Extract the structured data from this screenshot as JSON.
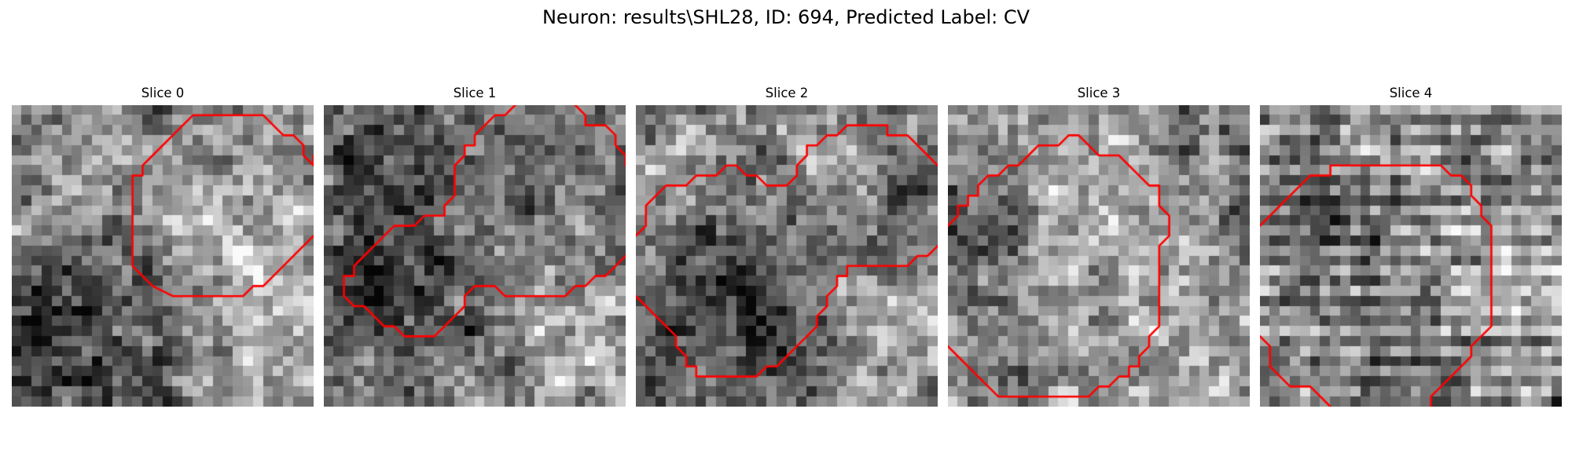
{
  "figure": {
    "title": "Neuron: results\\SHL28, ID: 694, Predicted Label: CV",
    "colormap": "gray",
    "contour_color": "#ff0000",
    "grid_resolution": 30
  },
  "panels": [
    {
      "title": "Slice 0",
      "seed": 101,
      "blobs": [
        {
          "cx": 20,
          "cy": 12,
          "r": 8,
          "v": 0.22
        },
        {
          "cx": 5,
          "cy": 21,
          "r": 7,
          "v": -0.26
        },
        {
          "cx": 13,
          "cy": 23,
          "r": 6,
          "v": -0.12
        },
        {
          "cx": 26,
          "cy": 24,
          "r": 6,
          "v": 0.18
        },
        {
          "cx": 3,
          "cy": 11,
          "r": 4,
          "v": 0.16
        }
      ],
      "contours": [
        [
          [
            19,
            1
          ],
          [
            25,
            1
          ],
          [
            27,
            3
          ],
          [
            28,
            3
          ],
          [
            29,
            4
          ],
          [
            29,
            5
          ],
          [
            30,
            6
          ],
          [
            30,
            5
          ]
        ],
        [
          [
            19,
            1
          ],
          [
            18,
            1
          ],
          [
            16,
            3
          ],
          [
            14,
            5
          ],
          [
            13,
            6
          ],
          [
            13,
            7
          ],
          [
            12,
            7
          ],
          [
            12,
            16
          ],
          [
            14,
            18
          ],
          [
            16,
            19
          ],
          [
            23,
            19
          ],
          [
            24,
            18
          ],
          [
            25,
            18
          ],
          [
            29,
            14
          ],
          [
            30,
            13
          ]
        ]
      ]
    },
    {
      "title": "Slice 1",
      "seed": 202,
      "blobs": [
        {
          "cx": 9,
          "cy": 17,
          "r": 8,
          "v": -0.3
        },
        {
          "cx": 17,
          "cy": 11,
          "r": 6,
          "v": 0.12
        },
        {
          "cx": 22,
          "cy": 23,
          "r": 6,
          "v": 0.16
        },
        {
          "cx": 4,
          "cy": 6,
          "r": 5,
          "v": -0.1
        },
        {
          "cx": 26,
          "cy": 7,
          "r": 4,
          "v": -0.12
        }
      ],
      "contours": [
        [
          [
            19,
            0
          ],
          [
            18,
            1
          ],
          [
            17,
            1
          ],
          [
            15,
            3
          ],
          [
            15,
            4
          ],
          [
            14,
            4
          ],
          [
            14,
            5
          ],
          [
            13,
            6
          ],
          [
            13,
            8
          ],
          [
            13,
            9
          ],
          [
            12,
            10
          ],
          [
            12,
            11
          ],
          [
            10,
            11
          ],
          [
            9,
            12
          ],
          [
            7,
            12
          ],
          [
            6,
            13
          ],
          [
            5,
            14
          ],
          [
            4,
            15
          ],
          [
            3,
            16
          ],
          [
            3,
            17
          ],
          [
            2,
            17
          ],
          [
            2,
            19
          ],
          [
            3,
            20
          ],
          [
            4,
            20
          ],
          [
            5,
            21
          ],
          [
            6,
            22
          ],
          [
            7,
            22
          ],
          [
            8,
            23
          ],
          [
            9,
            23
          ],
          [
            11,
            23
          ],
          [
            12,
            22
          ],
          [
            13,
            21
          ],
          [
            14,
            20
          ],
          [
            14,
            19
          ],
          [
            15,
            18
          ],
          [
            16,
            18
          ],
          [
            17,
            18
          ],
          [
            18,
            19
          ],
          [
            19,
            19
          ],
          [
            24,
            19
          ],
          [
            25,
            18
          ],
          [
            26,
            18
          ],
          [
            27,
            17
          ],
          [
            28,
            17
          ],
          [
            29,
            16
          ],
          [
            30,
            15
          ]
        ],
        [
          [
            25,
            0
          ],
          [
            26,
            1
          ],
          [
            26,
            2
          ],
          [
            27,
            2
          ],
          [
            28,
            2
          ],
          [
            29,
            3
          ],
          [
            29,
            4
          ],
          [
            30,
            5
          ],
          [
            30,
            6
          ]
        ]
      ]
    },
    {
      "title": "Slice 2",
      "seed": 303,
      "blobs": [
        {
          "cx": 10,
          "cy": 20,
          "r": 7,
          "v": -0.32
        },
        {
          "cx": 14,
          "cy": 9,
          "r": 8,
          "v": 0.1
        },
        {
          "cx": 25,
          "cy": 22,
          "r": 6,
          "v": 0.18
        },
        {
          "cx": 24,
          "cy": 4,
          "r": 5,
          "v": -0.1
        },
        {
          "cx": 2,
          "cy": 4,
          "r": 4,
          "v": 0.14
        }
      ],
      "contours": [
        [
          [
            0,
            13
          ],
          [
            1,
            12
          ],
          [
            1,
            11
          ],
          [
            1,
            10
          ],
          [
            2,
            9
          ],
          [
            3,
            8
          ],
          [
            4,
            8
          ],
          [
            5,
            8
          ],
          [
            6,
            7
          ],
          [
            7,
            7
          ],
          [
            8,
            7
          ],
          [
            9,
            6
          ],
          [
            10,
            6
          ],
          [
            11,
            7
          ],
          [
            12,
            7
          ],
          [
            13,
            8
          ],
          [
            14,
            8
          ],
          [
            15,
            8
          ],
          [
            16,
            7
          ],
          [
            16,
            6
          ],
          [
            17,
            5
          ],
          [
            17,
            4
          ],
          [
            18,
            4
          ],
          [
            19,
            3
          ],
          [
            20,
            3
          ],
          [
            21,
            2
          ],
          [
            22,
            2
          ],
          [
            24,
            2
          ],
          [
            25,
            2
          ],
          [
            25,
            3
          ],
          [
            26,
            3
          ],
          [
            27,
            3
          ],
          [
            28,
            4
          ],
          [
            29,
            5
          ],
          [
            30,
            6
          ]
        ],
        [
          [
            0,
            19
          ],
          [
            1,
            20
          ],
          [
            2,
            21
          ],
          [
            3,
            22
          ],
          [
            4,
            23
          ],
          [
            4,
            24
          ],
          [
            5,
            25
          ],
          [
            5,
            26
          ],
          [
            6,
            26
          ],
          [
            6,
            27
          ],
          [
            7,
            27
          ],
          [
            8,
            27
          ],
          [
            12,
            27
          ],
          [
            13,
            26
          ],
          [
            14,
            26
          ],
          [
            15,
            25
          ],
          [
            16,
            24
          ],
          [
            17,
            23
          ],
          [
            18,
            22
          ],
          [
            18,
            21
          ],
          [
            19,
            20
          ],
          [
            19,
            19
          ],
          [
            20,
            18
          ],
          [
            20,
            17
          ],
          [
            21,
            17
          ],
          [
            21,
            16
          ],
          [
            22,
            16
          ],
          [
            27,
            16
          ],
          [
            28,
            15
          ],
          [
            29,
            15
          ],
          [
            30,
            14
          ]
        ]
      ]
    },
    {
      "title": "Slice 3",
      "seed": 404,
      "blobs": [
        {
          "cx": 14,
          "cy": 14,
          "r": 9,
          "v": 0.28
        },
        {
          "cx": 3,
          "cy": 12,
          "r": 4,
          "v": -0.34
        },
        {
          "cx": 10,
          "cy": 23,
          "r": 5,
          "v": -0.14
        },
        {
          "cx": 27,
          "cy": 10,
          "r": 5,
          "v": -0.16
        },
        {
          "cx": 26,
          "cy": 28,
          "r": 4,
          "v": 0.16
        }
      ],
      "contours": [
        [
          [
            0,
            12
          ],
          [
            1,
            11
          ],
          [
            1,
            10
          ],
          [
            2,
            10
          ],
          [
            2,
            9
          ],
          [
            3,
            9
          ],
          [
            3,
            8
          ],
          [
            4,
            7
          ],
          [
            5,
            7
          ],
          [
            6,
            6
          ],
          [
            7,
            6
          ],
          [
            8,
            5
          ],
          [
            9,
            4
          ],
          [
            10,
            4
          ],
          [
            11,
            4
          ],
          [
            12,
            3
          ],
          [
            13,
            3
          ],
          [
            14,
            4
          ],
          [
            15,
            5
          ],
          [
            16,
            5
          ],
          [
            17,
            5
          ],
          [
            18,
            6
          ],
          [
            19,
            7
          ],
          [
            20,
            8
          ],
          [
            21,
            8
          ],
          [
            21,
            9
          ],
          [
            21,
            10
          ],
          [
            22,
            11
          ],
          [
            22,
            12
          ],
          [
            22,
            13
          ],
          [
            21,
            14
          ],
          [
            21,
            22
          ],
          [
            20,
            23
          ],
          [
            20,
            24
          ],
          [
            19,
            25
          ],
          [
            19,
            26
          ],
          [
            18,
            26
          ],
          [
            18,
            27
          ],
          [
            17,
            27
          ],
          [
            16,
            28
          ],
          [
            15,
            28
          ],
          [
            14,
            29
          ],
          [
            13,
            29
          ],
          [
            5,
            29
          ],
          [
            4,
            28
          ],
          [
            3,
            27
          ],
          [
            2,
            26
          ],
          [
            1,
            25
          ],
          [
            0,
            24
          ]
        ]
      ]
    },
    {
      "title": "Slice 4",
      "seed": 505,
      "blobs": [
        {
          "cx": 15,
          "cy": 15,
          "r": 9,
          "v": 0.08
        },
        {
          "cx": 13,
          "cy": 22,
          "r": 6,
          "v": -0.1
        },
        {
          "cx": 5,
          "cy": 9,
          "r": 5,
          "v": -0.12
        },
        {
          "cx": 25,
          "cy": 18,
          "r": 5,
          "v": 0.12
        }
      ],
      "stripes": true,
      "contours": [
        [
          [
            0,
            12
          ],
          [
            1,
            11
          ],
          [
            2,
            10
          ],
          [
            3,
            9
          ],
          [
            4,
            8
          ],
          [
            5,
            7
          ],
          [
            6,
            7
          ],
          [
            7,
            7
          ],
          [
            7,
            6
          ],
          [
            18,
            6
          ],
          [
            19,
            7
          ],
          [
            20,
            7
          ],
          [
            21,
            8
          ],
          [
            21,
            9
          ],
          [
            22,
            10
          ],
          [
            22,
            11
          ],
          [
            23,
            12
          ],
          [
            23,
            13
          ],
          [
            23,
            22
          ],
          [
            22,
            23
          ],
          [
            21,
            24
          ],
          [
            21,
            25
          ],
          [
            20,
            26
          ],
          [
            19,
            27
          ],
          [
            18,
            28
          ],
          [
            17,
            29
          ],
          [
            17,
            30
          ]
        ],
        [
          [
            0,
            23
          ],
          [
            1,
            24
          ],
          [
            1,
            26
          ],
          [
            2,
            27
          ],
          [
            3,
            28
          ],
          [
            4,
            28
          ],
          [
            5,
            28
          ],
          [
            6,
            29
          ],
          [
            7,
            30
          ]
        ]
      ]
    }
  ]
}
